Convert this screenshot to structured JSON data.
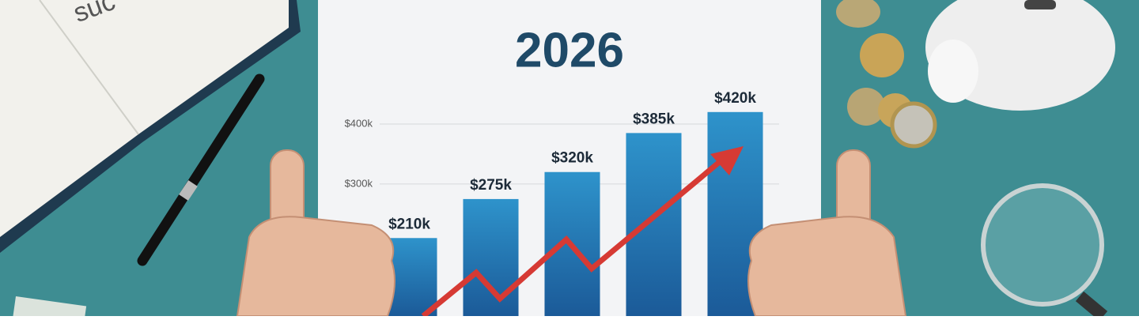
{
  "chart_data": {
    "type": "bar",
    "title": "2026",
    "categories": [
      null,
      null,
      null,
      null,
      null
    ],
    "values": [
      210000,
      275000,
      320000,
      385000,
      420000
    ],
    "value_labels": [
      "$210k",
      "$275k",
      "$320k",
      "$385k",
      "$420k"
    ],
    "color": "#2e93cb",
    "ylim": [
      80000,
      440000
    ],
    "yticks": [
      {
        "value": 300000,
        "label": "$300k"
      },
      {
        "value": 400000,
        "label": "$400k"
      }
    ],
    "grid": true
  }
}
